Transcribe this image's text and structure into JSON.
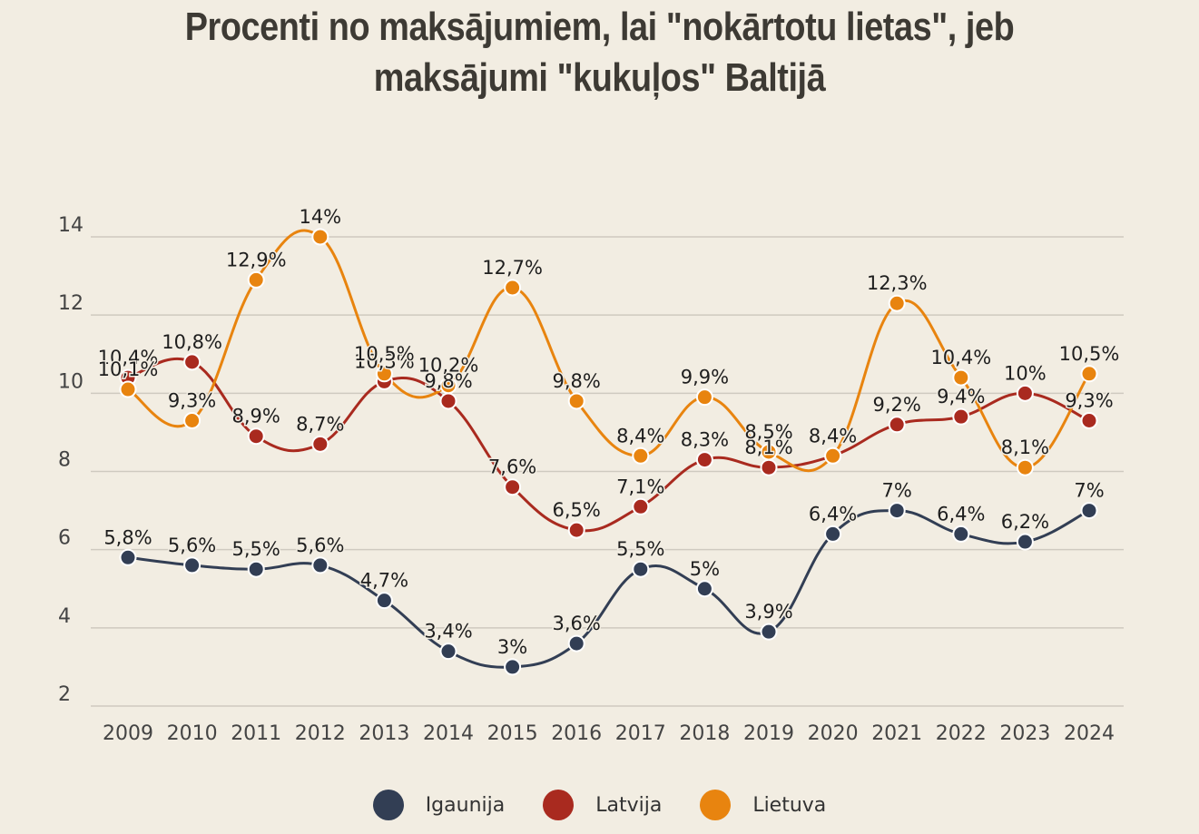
{
  "title_line1": "Procenti no maksājumiem, lai \"nokārtotu lietas\", jeb",
  "title_line2": "maksājumi \"kukuļos\" Baltijā",
  "chart_data": {
    "type": "line",
    "title": "Procenti no maksājumiem, lai \"nokārtotu lietas\", jeb maksājumi \"kukuļos\" Baltijā",
    "categories": [
      "2009",
      "2010",
      "2011",
      "2012",
      "2013",
      "2014",
      "2015",
      "2016",
      "2017",
      "2018",
      "2019",
      "2020",
      "2021",
      "2022",
      "2023",
      "2024"
    ],
    "y_ticks": [
      "2",
      "4",
      "6",
      "8",
      "10",
      "12",
      "14"
    ],
    "ylim": [
      2,
      14
    ],
    "grid": "horizontal",
    "legend_position": "bottom",
    "series": [
      {
        "name": "Igaunija",
        "color": "#323e54",
        "values": [
          5.8,
          5.6,
          5.5,
          5.6,
          4.7,
          3.4,
          3,
          3.6,
          5.5,
          5,
          3.9,
          6.4,
          7,
          6.4,
          6.2,
          7
        ],
        "labels": [
          "5,8%",
          "5,6%",
          "5,5%",
          "5,6%",
          "4,7%",
          "3,4%",
          "3%",
          "3,6%",
          "5,5%",
          "5%",
          "3,9%",
          "6,4%",
          "7%",
          "6,4%",
          "6,2%",
          "7%"
        ]
      },
      {
        "name": "Latvija",
        "color": "#a92a1f",
        "values": [
          10.4,
          10.8,
          8.9,
          8.7,
          10.3,
          9.8,
          7.6,
          6.5,
          7.1,
          8.3,
          8.1,
          8.4,
          9.2,
          9.4,
          10,
          9.3
        ],
        "labels": [
          "10,4%",
          "10,8%",
          "8,9%",
          "8,7%",
          "10,3%",
          "9,8%",
          "7,6%",
          "6,5%",
          "7,1%",
          "8,3%",
          "8,1%",
          "8,4%",
          "9,2%",
          "9,4%",
          "10%",
          "9,3%"
        ]
      },
      {
        "name": "Lietuva",
        "color": "#e8840f",
        "values": [
          10.1,
          9.3,
          12.9,
          14,
          10.5,
          10.2,
          12.7,
          9.8,
          8.4,
          9.9,
          8.5,
          8.4,
          12.3,
          10.4,
          8.1,
          10.5
        ],
        "labels": [
          "10,1%",
          "9,3%",
          "12,9%",
          "14%",
          "10,5%",
          "10,2%",
          "12,7%",
          "9,8%",
          "8,4%",
          "9,9%",
          "8,5%",
          "8,4%",
          "12,3%",
          "10,4%",
          "8,1%",
          "10,5%"
        ]
      }
    ]
  }
}
